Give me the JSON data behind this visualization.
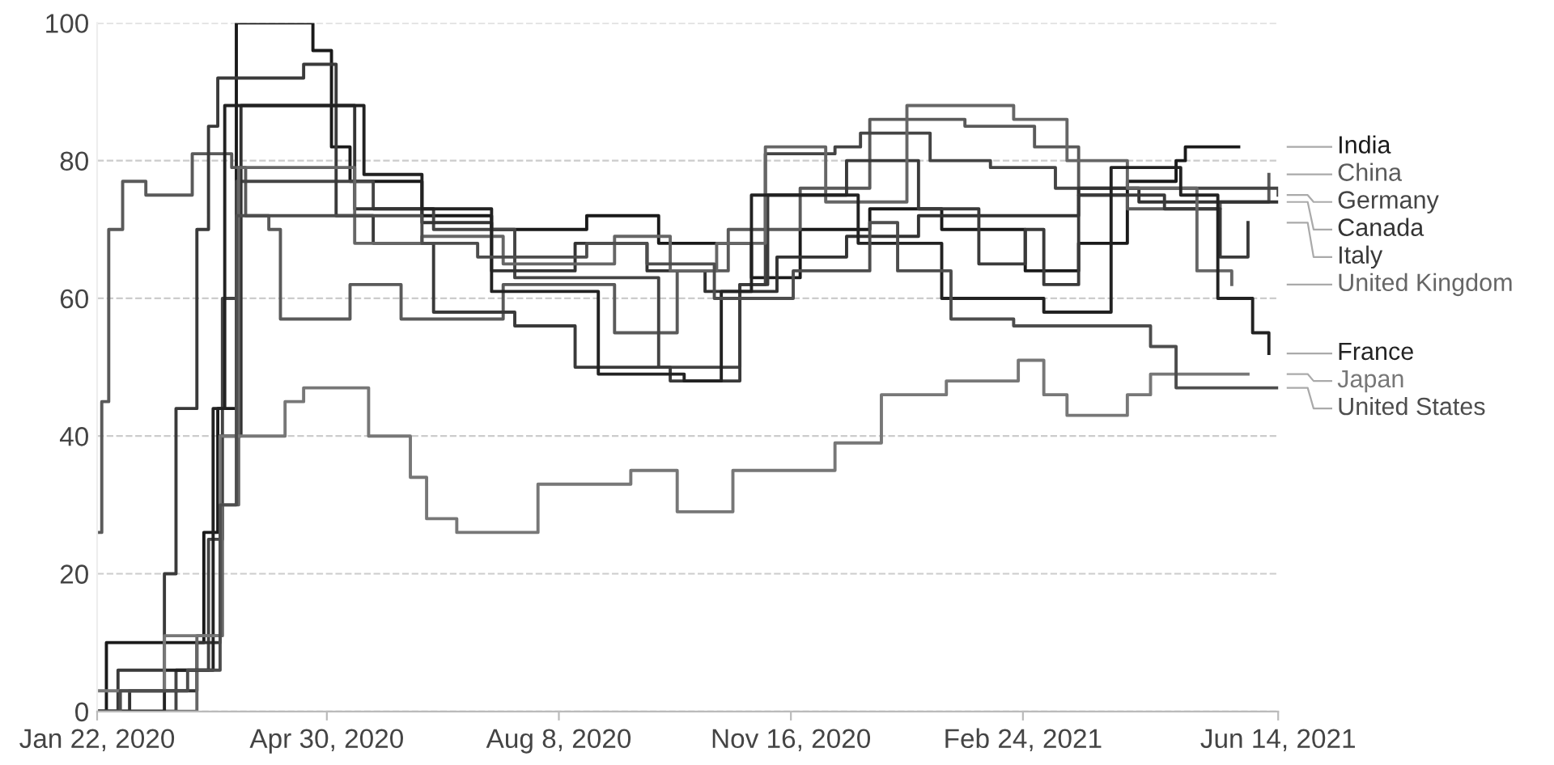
{
  "chart_data": {
    "type": "step",
    "ylim": [
      0,
      100
    ],
    "yticks": [
      0,
      20,
      40,
      60,
      80,
      100
    ],
    "xlim": [
      "2020-01-22",
      "2021-06-14"
    ],
    "xticks": [
      {
        "value": "2020-01-22",
        "label": "Jan 22, 2020"
      },
      {
        "value": "2020-04-30",
        "label": "Apr 30, 2020"
      },
      {
        "value": "2020-08-08",
        "label": "Aug 8, 2020"
      },
      {
        "value": "2020-11-16",
        "label": "Nov 16, 2020"
      },
      {
        "value": "2021-02-24",
        "label": "Feb 24, 2021"
      },
      {
        "value": "2021-06-14",
        "label": "Jun 14, 2021"
      }
    ],
    "grid": "y",
    "legend": "right",
    "line_style": "solid",
    "marker": "none",
    "series": [
      {
        "name": "India",
        "color": "#1a1a1a",
        "x": [
          "2020-01-22",
          "2020-01-26",
          "2020-03-01",
          "2020-03-08",
          "2020-03-14",
          "2020-03-22",
          "2020-04-24",
          "2020-05-02",
          "2020-05-10",
          "2020-06-10",
          "2020-07-10",
          "2020-08-20",
          "2020-09-20",
          "2020-10-30",
          "2020-11-20",
          "2020-12-20",
          "2021-01-20",
          "2021-02-25",
          "2021-03-20",
          "2021-04-10",
          "2021-05-01",
          "2021-05-05",
          "2021-05-28"
        ],
        "values": [
          0,
          10,
          10,
          26,
          44,
          100,
          96,
          82,
          77,
          72,
          70,
          72,
          68,
          63,
          70,
          73,
          70,
          64,
          68,
          77,
          80,
          82,
          82
        ]
      },
      {
        "name": "China",
        "color": "#5a5a5a",
        "x": [
          "2020-01-22",
          "2020-01-24",
          "2020-01-27",
          "2020-02-02",
          "2020-02-12",
          "2020-03-03",
          "2020-03-20",
          "2020-03-26",
          "2020-04-05",
          "2020-04-10",
          "2020-05-10",
          "2020-06-01",
          "2020-07-15",
          "2020-09-01",
          "2020-09-28",
          "2020-10-20",
          "2020-11-20",
          "2020-12-20",
          "2021-01-30",
          "2021-03-01",
          "2021-03-20",
          "2021-04-10",
          "2021-05-20",
          "2021-06-10"
        ],
        "values": [
          26,
          45,
          70,
          77,
          75,
          81,
          79,
          72,
          70,
          57,
          62,
          57,
          62,
          55,
          64,
          70,
          76,
          86,
          85,
          82,
          75,
          73,
          74,
          78
        ]
      },
      {
        "name": "Germany",
        "color": "#444444",
        "x": [
          "2020-01-22",
          "2020-02-25",
          "2020-03-10",
          "2020-03-16",
          "2020-03-22",
          "2020-05-10",
          "2020-05-20",
          "2020-06-15",
          "2020-07-20",
          "2020-08-20",
          "2020-09-20",
          "2020-10-25",
          "2020-11-05",
          "2020-12-05",
          "2020-12-16",
          "2021-01-15",
          "2021-02-10",
          "2021-03-10",
          "2021-04-05",
          "2021-05-01",
          "2021-06-14"
        ],
        "values": [
          0,
          6,
          25,
          60,
          77,
          77,
          73,
          70,
          63,
          63,
          50,
          62,
          81,
          82,
          84,
          80,
          79,
          76,
          76,
          76,
          75
        ]
      },
      {
        "name": "Canada",
        "color": "#333333",
        "x": [
          "2020-01-22",
          "2020-02-05",
          "2020-03-05",
          "2020-03-15",
          "2020-03-24",
          "2020-05-01",
          "2020-05-12",
          "2020-06-10",
          "2020-07-10",
          "2020-08-15",
          "2020-09-15",
          "2020-10-10",
          "2020-11-10",
          "2020-12-10",
          "2021-01-10",
          "2021-02-20",
          "2021-03-20",
          "2021-04-15",
          "2021-06-14"
        ],
        "values": [
          0,
          3,
          10,
          40,
          88,
          88,
          73,
          71,
          64,
          68,
          64,
          61,
          66,
          69,
          72,
          72,
          76,
          74,
          74
        ]
      },
      {
        "name": "Italy",
        "color": "#3a3a3a",
        "x": [
          "2020-01-22",
          "2020-01-31",
          "2020-02-20",
          "2020-02-25",
          "2020-03-05",
          "2020-03-10",
          "2020-03-14",
          "2020-04-20",
          "2020-05-04",
          "2020-05-20",
          "2020-06-15",
          "2020-07-20",
          "2020-08-15",
          "2020-09-25",
          "2020-10-25",
          "2020-11-06",
          "2020-12-10",
          "2021-01-10",
          "2021-02-05",
          "2021-02-25",
          "2021-03-05",
          "2021-03-20",
          "2021-04-26",
          "2021-05-20",
          "2021-06-01"
        ],
        "values": [
          0,
          6,
          20,
          44,
          70,
          85,
          92,
          94,
          72,
          68,
          58,
          56,
          50,
          48,
          62,
          75,
          80,
          73,
          65,
          70,
          62,
          75,
          73,
          66,
          71
        ]
      },
      {
        "name": "United Kingdom",
        "color": "#666666",
        "x": [
          "2020-01-22",
          "2020-03-05",
          "2020-03-16",
          "2020-03-23",
          "2020-04-20",
          "2020-05-12",
          "2020-06-10",
          "2020-07-15",
          "2020-09-01",
          "2020-09-25",
          "2020-10-15",
          "2020-11-05",
          "2020-12-01",
          "2021-01-05",
          "2021-02-20",
          "2021-03-15",
          "2021-04-10",
          "2021-05-10",
          "2021-05-25"
        ],
        "values": [
          0,
          11,
          30,
          79,
          79,
          68,
          69,
          65,
          69,
          64,
          68,
          82,
          74,
          88,
          86,
          80,
          76,
          64,
          62
        ]
      },
      {
        "name": "France",
        "color": "#222222",
        "x": [
          "2020-01-22",
          "2020-02-20",
          "2020-03-12",
          "2020-03-17",
          "2020-05-10",
          "2020-05-16",
          "2020-06-10",
          "2020-07-10",
          "2020-08-25",
          "2020-10-01",
          "2020-10-17",
          "2020-10-30",
          "2020-12-15",
          "2021-01-20",
          "2021-03-05",
          "2021-04-03",
          "2021-05-03",
          "2021-05-19",
          "2021-06-03",
          "2021-06-10"
        ],
        "values": [
          0,
          6,
          44,
          88,
          88,
          78,
          73,
          61,
          49,
          48,
          61,
          75,
          68,
          60,
          58,
          79,
          75,
          60,
          55,
          52
        ]
      },
      {
        "name": "Japan",
        "color": "#777777",
        "x": [
          "2020-01-22",
          "2020-02-20",
          "2020-03-15",
          "2020-04-12",
          "2020-04-20",
          "2020-05-18",
          "2020-06-05",
          "2020-06-12",
          "2020-06-25",
          "2020-07-30",
          "2020-09-08",
          "2020-09-28",
          "2020-10-22",
          "2020-12-05",
          "2020-12-25",
          "2021-01-22",
          "2021-02-22",
          "2021-03-05",
          "2021-03-15",
          "2021-04-10",
          "2021-04-20",
          "2021-06-01"
        ],
        "values": [
          3,
          11,
          40,
          45,
          47,
          40,
          34,
          28,
          26,
          33,
          35,
          29,
          35,
          39,
          46,
          48,
          51,
          46,
          43,
          46,
          49,
          49
        ]
      },
      {
        "name": "United States",
        "color": "#4d4d4d",
        "x": [
          "2020-01-22",
          "2020-02-01",
          "2020-03-01",
          "2020-03-15",
          "2020-03-22",
          "2020-05-10",
          "2020-06-10",
          "2020-07-04",
          "2020-08-20",
          "2020-09-15",
          "2020-10-14",
          "2020-11-17",
          "2020-12-20",
          "2021-01-01",
          "2021-01-24",
          "2021-02-20",
          "2021-03-20",
          "2021-04-20",
          "2021-05-01",
          "2021-06-14"
        ],
        "values": [
          0,
          3,
          6,
          30,
          72,
          72,
          68,
          66,
          68,
          65,
          60,
          64,
          71,
          64,
          57,
          56,
          56,
          53,
          47,
          47
        ]
      }
    ]
  }
}
